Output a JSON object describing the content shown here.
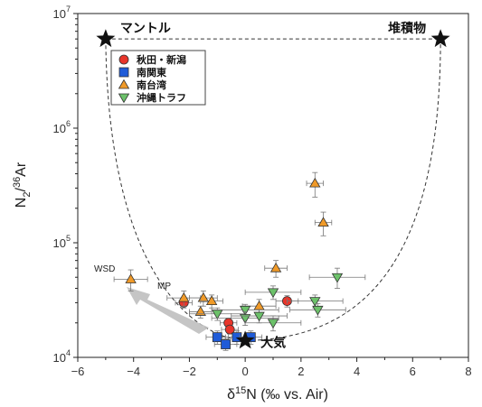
{
  "chart_data": {
    "type": "scatter",
    "x_label_parts": {
      "delta": "δ",
      "sup": "15",
      "rest": "N (‰ vs. Air)"
    },
    "y_label_parts": {
      "n": "N",
      "sub": "2",
      "slash": "/",
      "sup": "36",
      "rest": "Ar"
    },
    "xlim": [
      -6,
      8
    ],
    "ylim": [
      10000,
      10000000
    ],
    "yscale": "log",
    "x_ticks": [
      "−6",
      "−4",
      "−2",
      "0",
      "2",
      "4",
      "6",
      "8"
    ],
    "y_ticks": [
      {
        "base": "10",
        "exp": "4"
      },
      {
        "base": "10",
        "exp": "5"
      },
      {
        "base": "10",
        "exp": "6"
      },
      {
        "base": "10",
        "exp": "7"
      }
    ],
    "grid": false,
    "legend_position": "top-left",
    "series": [
      {
        "name": "秋田・新潟",
        "marker": "circle",
        "color": "#e8352a",
        "points": [
          {
            "x": -2.2,
            "y": 30000,
            "xerr": 0.3,
            "yerr": 3000
          },
          {
            "x": -0.6,
            "y": 20000,
            "xerr": 0.3,
            "yerr": 2000
          },
          {
            "x": -0.55,
            "y": 17500,
            "xerr": 0.3,
            "yerr": 1500
          },
          {
            "x": 1.5,
            "y": 31000,
            "xerr": 0.4,
            "yerr": 3500
          }
        ]
      },
      {
        "name": "南関東",
        "marker": "square",
        "color": "#1f5bd8",
        "points": [
          {
            "x": -1.0,
            "y": 15000,
            "xerr": 0.4,
            "yerr": 2000
          },
          {
            "x": -0.7,
            "y": 13000,
            "xerr": 0.4,
            "yerr": 1500
          },
          {
            "x": -0.3,
            "y": 15000,
            "xerr": 0.4,
            "yerr": 2000
          },
          {
            "x": 0.2,
            "y": 15000,
            "xerr": 0.4,
            "yerr": 2000
          }
        ]
      },
      {
        "name": "南台湾",
        "marker": "triangle-up",
        "color": "#f09a28",
        "points": [
          {
            "x": -4.1,
            "y": 48000,
            "xerr": 0.6,
            "yerr": 10000
          },
          {
            "x": -2.2,
            "y": 33000,
            "xerr": 0.6,
            "yerr": 5000
          },
          {
            "x": -1.5,
            "y": 33000,
            "xerr": 0.5,
            "yerr": 5000
          },
          {
            "x": -1.6,
            "y": 25000,
            "xerr": 0.4,
            "yerr": 3000
          },
          {
            "x": -1.2,
            "y": 31000,
            "xerr": 0.4,
            "yerr": 4000
          },
          {
            "x": 0.5,
            "y": 28000,
            "xerr": 0.6,
            "yerr": 4000
          },
          {
            "x": 1.1,
            "y": 60000,
            "xerr": 0.4,
            "yerr": 10000
          },
          {
            "x": 2.5,
            "y": 330000,
            "xerr": 0.3,
            "yerr": 80000
          },
          {
            "x": 2.8,
            "y": 150000,
            "xerr": 0.3,
            "yerr": 35000
          }
        ]
      },
      {
        "name": "沖縄トラフ",
        "marker": "triangle-down",
        "color": "#6cc16a",
        "points": [
          {
            "x": -1.0,
            "y": 24000,
            "xerr": 1.0,
            "yerr": 3000
          },
          {
            "x": 0.0,
            "y": 26000,
            "xerr": 1.2,
            "yerr": 3000
          },
          {
            "x": 0.0,
            "y": 22000,
            "xerr": 1.2,
            "yerr": 3000
          },
          {
            "x": 0.5,
            "y": 23000,
            "xerr": 1.0,
            "yerr": 3000
          },
          {
            "x": 1.0,
            "y": 37000,
            "xerr": 1.0,
            "yerr": 5000
          },
          {
            "x": 1.0,
            "y": 20000,
            "xerr": 1.0,
            "yerr": 3000
          },
          {
            "x": 2.5,
            "y": 31000,
            "xerr": 1.0,
            "yerr": 4000
          },
          {
            "x": 2.6,
            "y": 26000,
            "xerr": 1.0,
            "yerr": 3500
          },
          {
            "x": 3.3,
            "y": 50000,
            "xerr": 1.0,
            "yerr": 10000
          }
        ]
      }
    ],
    "endmembers": [
      {
        "label": "マントル",
        "x": -5.0,
        "y": 6000000
      },
      {
        "label": "堆積物",
        "x": 7.0,
        "y": 6000000
      },
      {
        "label": "大気",
        "x": 0.0,
        "y": 14000
      }
    ],
    "annotations": [
      {
        "text": "WSD"
      },
      {
        "text": "MP"
      }
    ],
    "mixing_curves": "dashed lines connecting air with mantle and sediment end-members"
  }
}
